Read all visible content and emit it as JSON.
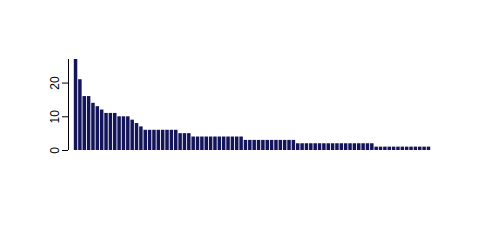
{
  "chart_data": {
    "type": "bar",
    "values": [
      27,
      21,
      16,
      16,
      14,
      13,
      12,
      11,
      11,
      11,
      10,
      10,
      10,
      9,
      8,
      7,
      6,
      6,
      6,
      6,
      6,
      6,
      6,
      6,
      5,
      5,
      5,
      4,
      4,
      4,
      4,
      4,
      4,
      4,
      4,
      4,
      4,
      4,
      4,
      3,
      3,
      3,
      3,
      3,
      3,
      3,
      3,
      3,
      3,
      3,
      3,
      2,
      2,
      2,
      2,
      2,
      2,
      2,
      2,
      2,
      2,
      2,
      2,
      2,
      2,
      2,
      2,
      2,
      2,
      1,
      1,
      1,
      1,
      1,
      1,
      1,
      1,
      1,
      1,
      1,
      1,
      1
    ],
    "color": "#14145a",
    "ylim": [
      0,
      27
    ],
    "yticks": [
      0,
      10,
      20
    ],
    "tick_labels": "y"
  }
}
